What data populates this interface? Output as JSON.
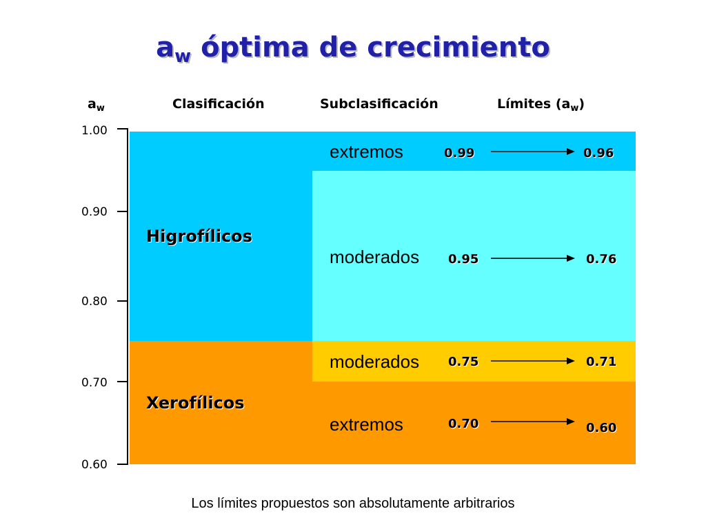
{
  "title": {
    "symbol": "a",
    "subscript": "w",
    "text": " óptima de crecimiento"
  },
  "headers": {
    "aw_symbol": "a",
    "aw_subscript": "w",
    "clasificacion": "Clasificación",
    "subclasificacion": "Subclasificación",
    "limites_prefix": "Límites (a",
    "limites_subscript": "w",
    "limites_suffix": ")"
  },
  "axis": {
    "ticks": [
      "1.00",
      "0.90",
      "0.80",
      "0.70",
      "0.60"
    ]
  },
  "classes": [
    {
      "name": "Higrofílicos",
      "color": "#00ccff",
      "subclasses": [
        {
          "name": "extremos",
          "from": "0.99",
          "to": "0.96",
          "color": "#00ccff"
        },
        {
          "name": "moderados",
          "from": "0.95",
          "to": "0.76",
          "color": "#66ffff"
        }
      ]
    },
    {
      "name": "Xerofílicos",
      "color": "#ff9900",
      "subclasses": [
        {
          "name": "moderados",
          "from": "0.75",
          "to": "0.71",
          "color": "#ffcc00"
        },
        {
          "name": "extremos",
          "from": "0.70",
          "to": "0.60",
          "color": "#ff9900"
        }
      ]
    }
  ],
  "footnote": "Los límites propuestos son absolutamente arbitrarios"
}
